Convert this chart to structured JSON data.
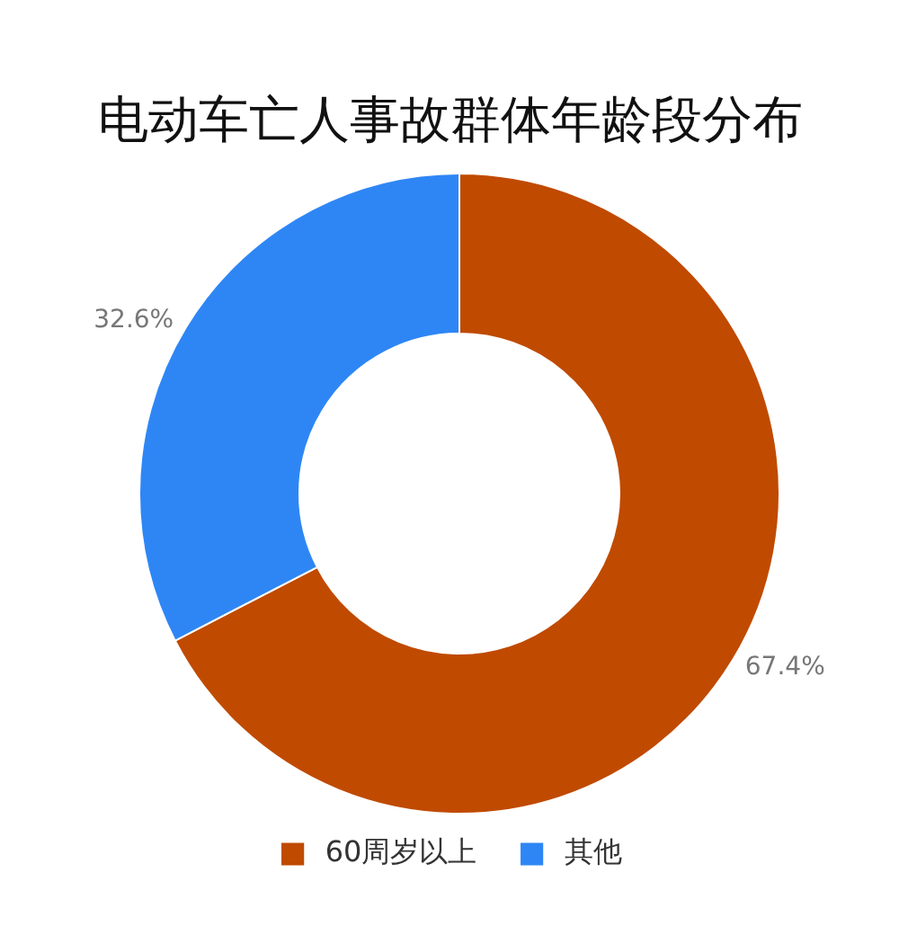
{
  "chart_data": {
    "type": "donut",
    "title": "电动车亡人事故群体年龄段分布",
    "categories": [
      "60周岁以上",
      "其他"
    ],
    "values": [
      67.4,
      32.6
    ],
    "colors": [
      "#c04a00",
      "#2e86f5"
    ],
    "value_labels": [
      "67.4%",
      "32.6%"
    ],
    "legend": "bottom"
  }
}
